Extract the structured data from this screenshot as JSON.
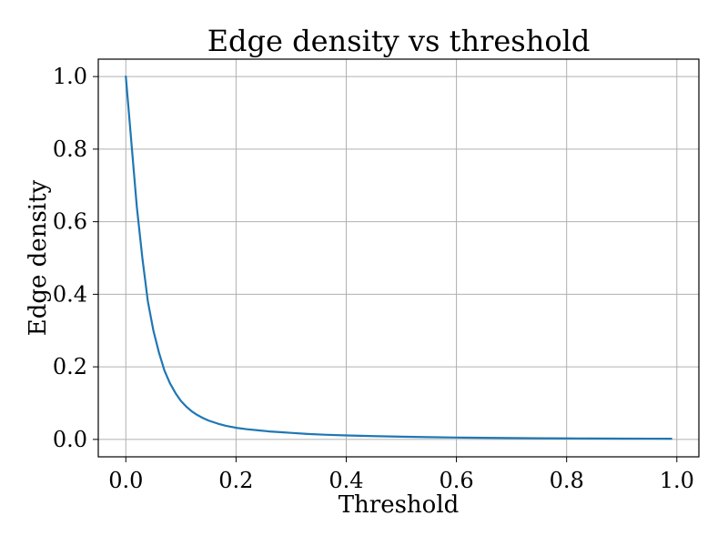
{
  "chart_data": {
    "type": "line",
    "title": "Edge density vs threshold",
    "xlabel": "Threshold",
    "ylabel": "Edge density",
    "xlim": [
      -0.05,
      1.04
    ],
    "ylim": [
      -0.048,
      1.048
    ],
    "xticks": [
      0.0,
      0.2,
      0.4,
      0.6,
      0.8,
      1.0
    ],
    "xtick_labels": [
      "0.0",
      "0.2",
      "0.4",
      "0.6",
      "0.8",
      "1.0"
    ],
    "yticks": [
      0.0,
      0.2,
      0.4,
      0.6,
      0.8,
      1.0
    ],
    "ytick_labels": [
      "0.0",
      "0.2",
      "0.4",
      "0.6",
      "0.8",
      "1.0"
    ],
    "grid": true,
    "legend": "none",
    "series": [
      {
        "color": "#1f77b4",
        "x": [
          0.0,
          0.01,
          0.02,
          0.03,
          0.04,
          0.05,
          0.06,
          0.07,
          0.08,
          0.09,
          0.1,
          0.11,
          0.12,
          0.13,
          0.14,
          0.15,
          0.16,
          0.17,
          0.18,
          0.19,
          0.2,
          0.22,
          0.24,
          0.26,
          0.28,
          0.3,
          0.33,
          0.36,
          0.4,
          0.45,
          0.5,
          0.55,
          0.6,
          0.65,
          0.7,
          0.75,
          0.8,
          0.85,
          0.9,
          0.95,
          0.99
        ],
        "y": [
          1.0,
          0.82,
          0.64,
          0.5,
          0.38,
          0.3,
          0.24,
          0.19,
          0.155,
          0.128,
          0.106,
          0.09,
          0.077,
          0.067,
          0.059,
          0.052,
          0.047,
          0.042,
          0.038,
          0.035,
          0.032,
          0.028,
          0.025,
          0.022,
          0.02,
          0.018,
          0.015,
          0.013,
          0.011,
          0.009,
          0.0075,
          0.0062,
          0.0052,
          0.0044,
          0.0037,
          0.0032,
          0.0028,
          0.0025,
          0.0022,
          0.002,
          0.0018
        ]
      }
    ]
  }
}
